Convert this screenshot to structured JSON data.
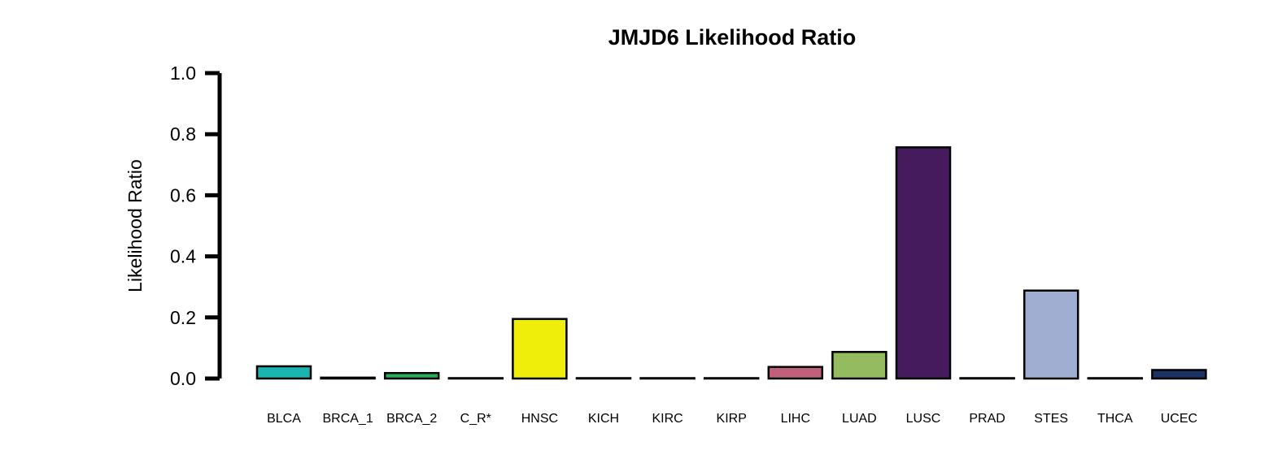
{
  "chart_data": {
    "type": "bar",
    "title": "JMJD6 Likelihood Ratio",
    "xlabel": "",
    "ylabel": "Likelihood Ratio",
    "ylim": [
      0,
      1.0
    ],
    "yticks": [
      "0.0",
      "0.2",
      "0.4",
      "0.6",
      "0.8",
      "1.0"
    ],
    "ytick_values": [
      0,
      0.2,
      0.4,
      0.6,
      0.8,
      1.0
    ],
    "grid": false,
    "legend": "none",
    "categories": [
      "BLCA",
      "BRCA_1",
      "BRCA_2",
      "C_R*",
      "HNSC",
      "KICH",
      "KIRC",
      "KIRP",
      "LIHC",
      "LUAD",
      "LUSC",
      "PRAD",
      "STES",
      "THCA",
      "UCEC"
    ],
    "values": [
      0.04,
      0.003,
      0.018,
      0.0,
      0.195,
      0.0,
      0.0,
      0.0,
      0.038,
      0.087,
      0.757,
      0.0,
      0.288,
      0.0,
      0.028
    ],
    "colors": [
      "#1bb5b1",
      "#1a1a1a",
      "#22b05a",
      "#1a1a1a",
      "#eeee0a",
      "#1a1a1a",
      "#1a1a1a",
      "#1a1a1a",
      "#c0607a",
      "#95bb60",
      "#461b5e",
      "#1a1a1a",
      "#a0aed1",
      "#1a1a1a",
      "#1c3366"
    ]
  }
}
